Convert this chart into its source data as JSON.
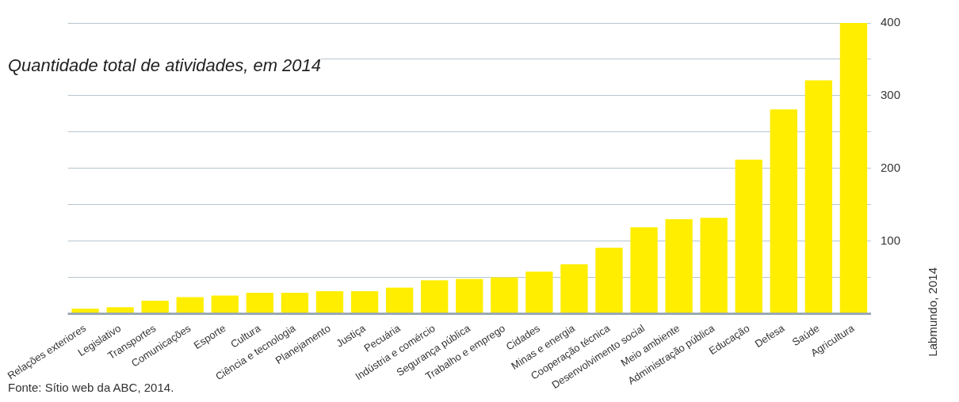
{
  "chart_data": {
    "type": "bar",
    "title": "Quantidade total de atividades, em 2014",
    "categories": [
      "Relações exteriores",
      "Legislativo",
      "Transportes",
      "Comunicações",
      "Esporte",
      "Cultura",
      "Ciência e tecnologia",
      "Planejamento",
      "Justiça",
      "Pecuária",
      "Indústria e comércio",
      "Segurança pública",
      "Trabalho e emprego",
      "Cidades",
      "Minas e energia",
      "Cooperação técnica",
      "Desenvolvimento social",
      "Meio ambiente",
      "Administração pública",
      "Educação",
      "Defesa",
      "Saúde",
      "Agricultura"
    ],
    "values": [
      7,
      9,
      18,
      23,
      25,
      29,
      29,
      31,
      31,
      36,
      46,
      48,
      50,
      58,
      68,
      91,
      119,
      130,
      132,
      212,
      281,
      321,
      400
    ],
    "color": "#ffee00",
    "ylim": [
      0,
      400
    ],
    "yticks": [
      {
        "value": 0,
        "label": null
      },
      {
        "value": 50,
        "label": null
      },
      100,
      {
        "value": 150,
        "label": null
      },
      200,
      {
        "value": 250,
        "label": null
      },
      300,
      {
        "value": 350,
        "label": null
      },
      400
    ],
    "grid": "y",
    "legend": false,
    "annotations": [
      "Fonte: Sítio web da ABC, 2014.",
      "Labmundo, 2014"
    ]
  }
}
